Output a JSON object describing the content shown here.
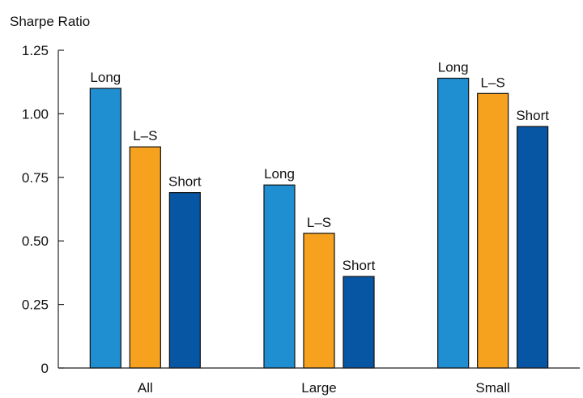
{
  "chart_data": {
    "type": "bar",
    "ylabel": "Sharpe Ratio",
    "ylim": [
      0,
      1.25
    ],
    "yticks": [
      0,
      0.25,
      0.5,
      0.75,
      1.0,
      1.25
    ],
    "ytick_labels": [
      "0",
      "0.25",
      "0.50",
      "0.75",
      "1.00",
      "1.25"
    ],
    "grid": false,
    "legend": "none",
    "categories": [
      "All",
      "Large",
      "Small"
    ],
    "series": [
      {
        "name": "Long",
        "color": "#1f8fd2",
        "values": [
          1.1,
          0.72,
          1.14
        ]
      },
      {
        "name": "L–S",
        "color": "#f6a21f",
        "values": [
          0.87,
          0.53,
          1.08
        ]
      },
      {
        "name": "Short",
        "color": "#0656a3",
        "values": [
          0.69,
          0.36,
          0.95
        ]
      }
    ],
    "bar_label_colors": "#111111"
  }
}
